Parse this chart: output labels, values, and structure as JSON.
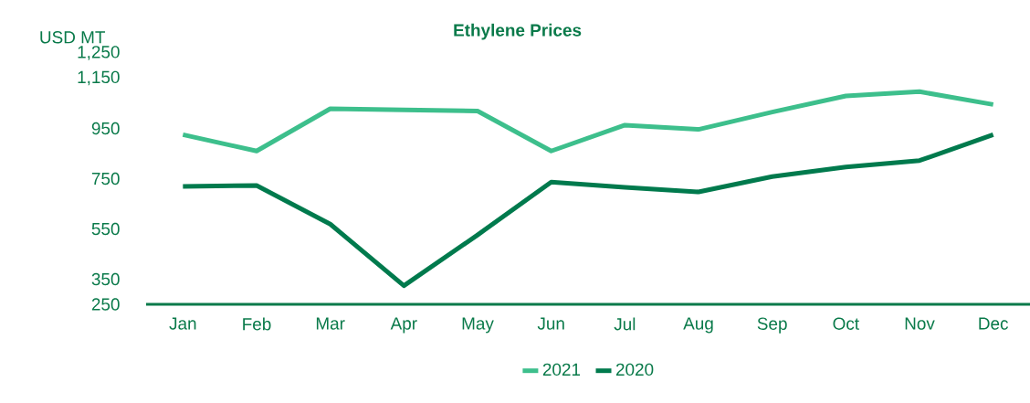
{
  "chart_data": {
    "type": "line",
    "title": "Ethylene Prices",
    "ylabel": "USD MT",
    "categories": [
      "Jan",
      "Feb",
      "Mar",
      "Apr",
      "May",
      "Jun",
      "Jul",
      "Aug",
      "Sep",
      "Oct",
      "Nov",
      "Dec"
    ],
    "series": [
      {
        "name": "2021",
        "color": "#3dbf8c",
        "values": [
          925,
          860,
          1028,
          1024,
          1019,
          860,
          963,
          946,
          1015,
          1079,
          1096,
          1045
        ]
      },
      {
        "name": "2020",
        "color": "#007a4d",
        "values": [
          719,
          723,
          569,
          324,
          526,
          736,
          715,
          697,
          758,
          796,
          822,
          925
        ]
      }
    ],
    "ylim": [
      250,
      1250
    ],
    "yticks": [
      {
        "value": 250,
        "label": "250"
      },
      {
        "value": 350,
        "label": "350"
      },
      {
        "value": 550,
        "label": "550"
      },
      {
        "value": 750,
        "label": "750"
      },
      {
        "value": 950,
        "label": "950"
      },
      {
        "value": 1150,
        "label": "1,150"
      },
      {
        "value": 1250,
        "label": "1,250"
      }
    ],
    "legend": "bottom"
  }
}
